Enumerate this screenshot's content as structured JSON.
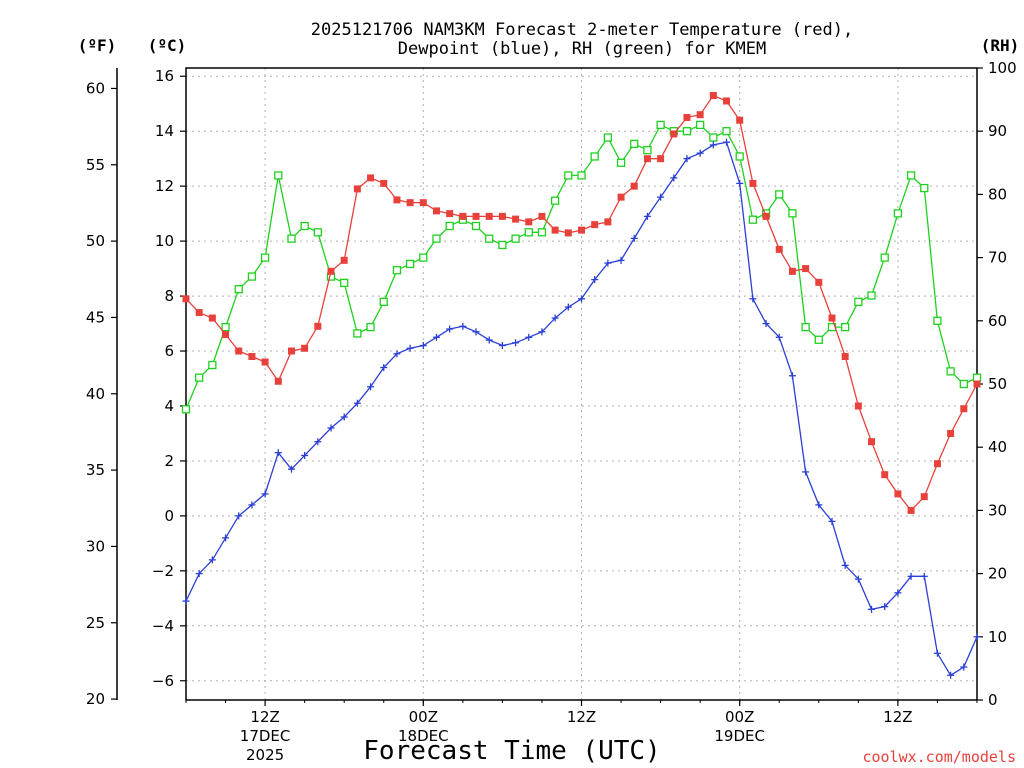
{
  "chart_data": {
    "type": "line",
    "title_line1": "2025121706 NAM3KM Forecast 2-meter Temperature (red),",
    "title_line2": "Dewpoint (blue), RH (green) for KMEM",
    "xlabel": "Forecast Time (UTC)",
    "credit": "coolwx.com/models",
    "units": {
      "fahrenheit": "(ºF)",
      "celsius": "(ºC)",
      "rh": "(RH)"
    },
    "xlim": [
      6,
      66
    ],
    "x_ticks": [
      {
        "x": 12,
        "line1": "12Z",
        "line2": "17DEC",
        "line3": "2025"
      },
      {
        "x": 24,
        "line1": "00Z",
        "line2": "18DEC",
        "line3": ""
      },
      {
        "x": 36,
        "line1": "12Z",
        "line2": "",
        "line3": ""
      },
      {
        "x": 48,
        "line1": "00Z",
        "line2": "19DEC",
        "line3": ""
      },
      {
        "x": 60,
        "line1": "12Z",
        "line2": "",
        "line3": ""
      }
    ],
    "y_celsius": {
      "range": [
        -6.7,
        16.3
      ],
      "ticks": [
        16,
        14,
        12,
        10,
        8,
        6,
        4,
        2,
        0,
        -2,
        -4,
        -6
      ],
      "tick_labels": [
        "16",
        "14",
        "12",
        "10",
        "8",
        "6",
        "4",
        "2",
        "0",
        "−2",
        "−4",
        "−6"
      ]
    },
    "y_fahrenheit": {
      "ticks": [
        60,
        55,
        50,
        45,
        40,
        35,
        30,
        25,
        20
      ],
      "tick_labels": [
        "60",
        "55",
        "50",
        "45",
        "40",
        "35",
        "30",
        "25",
        "20"
      ]
    },
    "y_rh": {
      "range": [
        0,
        100
      ],
      "ticks": [
        100,
        90,
        80,
        70,
        60,
        50,
        40,
        30,
        20,
        10,
        0
      ],
      "tick_labels": [
        "100",
        "90",
        "80",
        "70",
        "60",
        "50",
        "40",
        "30",
        "20",
        "10",
        "0"
      ]
    },
    "series": [
      {
        "name": "2-meter Temperature",
        "unit": "C",
        "color": "#e8413c",
        "marker": "filled-square",
        "x": [
          6,
          7,
          8,
          9,
          10,
          11,
          12,
          13,
          14,
          15,
          16,
          17,
          18,
          19,
          20,
          21,
          22,
          23,
          24,
          25,
          26,
          27,
          28,
          29,
          30,
          31,
          32,
          33,
          34,
          35,
          36,
          37,
          38,
          39,
          40,
          41,
          42,
          43,
          44,
          45,
          46,
          47,
          48,
          49,
          50,
          51,
          52,
          53,
          54,
          55,
          56,
          57,
          58,
          59,
          60,
          61,
          62,
          63,
          64,
          65,
          66
        ],
        "values": [
          7.9,
          7.4,
          7.2,
          6.6,
          6.0,
          5.8,
          5.6,
          4.9,
          6.0,
          6.1,
          6.9,
          8.9,
          9.3,
          11.9,
          12.3,
          12.1,
          11.5,
          11.4,
          11.4,
          11.1,
          11.0,
          10.9,
          10.9,
          10.9,
          10.9,
          10.8,
          10.7,
          10.9,
          10.4,
          10.3,
          10.4,
          10.6,
          10.7,
          11.6,
          12.0,
          13.0,
          13.0,
          13.9,
          14.5,
          14.6,
          15.3,
          15.1,
          14.4,
          12.1,
          10.9,
          9.7,
          8.9,
          9.0,
          8.5,
          7.2,
          5.8,
          4.0,
          2.7,
          1.5,
          0.8,
          0.2,
          0.7,
          1.9,
          3.0,
          3.9,
          4.8
        ]
      },
      {
        "name": "Dewpoint",
        "unit": "C",
        "color": "#2a3fd6",
        "marker": "plus",
        "x": [
          6,
          7,
          8,
          9,
          10,
          11,
          12,
          13,
          14,
          15,
          16,
          17,
          18,
          19,
          20,
          21,
          22,
          23,
          24,
          25,
          26,
          27,
          28,
          29,
          30,
          31,
          32,
          33,
          34,
          35,
          36,
          37,
          38,
          39,
          40,
          41,
          42,
          43,
          44,
          45,
          46,
          47,
          48,
          49,
          50,
          51,
          52,
          53,
          54,
          55,
          56,
          57,
          58,
          59,
          60,
          61,
          62,
          63,
          64,
          65,
          66
        ],
        "values": [
          -3.1,
          -2.1,
          -1.6,
          -0.8,
          0.0,
          0.4,
          0.8,
          2.3,
          1.7,
          2.2,
          2.7,
          3.2,
          3.6,
          4.1,
          4.7,
          5.4,
          5.9,
          6.1,
          6.2,
          6.5,
          6.8,
          6.9,
          6.7,
          6.4,
          6.2,
          6.3,
          6.5,
          6.7,
          7.2,
          7.6,
          7.9,
          8.6,
          9.2,
          9.3,
          10.1,
          10.9,
          11.6,
          12.3,
          13.0,
          13.2,
          13.5,
          13.6,
          12.1,
          7.9,
          7.0,
          6.5,
          5.1,
          1.6,
          0.4,
          -0.2,
          -1.8,
          -2.3,
          -3.4,
          -3.3,
          -2.8,
          -2.2,
          -2.2,
          -5.0,
          -5.8,
          -5.5,
          -4.4
        ]
      },
      {
        "name": "Relative Humidity",
        "unit": "RH",
        "color": "#1fd11f",
        "marker": "open-square",
        "x": [
          6,
          7,
          8,
          9,
          10,
          11,
          12,
          13,
          14,
          15,
          16,
          17,
          18,
          19,
          20,
          21,
          22,
          23,
          24,
          25,
          26,
          27,
          28,
          29,
          30,
          31,
          32,
          33,
          34,
          35,
          36,
          37,
          38,
          39,
          40,
          41,
          42,
          43,
          44,
          45,
          46,
          47,
          48,
          49,
          50,
          51,
          52,
          53,
          54,
          55,
          56,
          57,
          58,
          59,
          60,
          61,
          62,
          63,
          64,
          65,
          66
        ],
        "values": [
          46,
          51,
          53,
          59,
          65,
          67,
          70,
          83,
          73,
          75,
          74,
          67,
          66,
          58,
          59,
          63,
          68,
          69,
          70,
          73,
          75,
          76,
          75,
          73,
          72,
          73,
          74,
          74,
          79,
          83,
          83,
          86,
          89,
          85,
          88,
          87,
          91,
          90,
          90,
          91,
          89,
          90,
          86,
          76,
          77,
          80,
          77,
          59,
          57,
          59,
          59,
          63,
          64,
          70,
          77,
          83,
          81,
          60,
          52,
          50,
          51
        ]
      }
    ]
  }
}
